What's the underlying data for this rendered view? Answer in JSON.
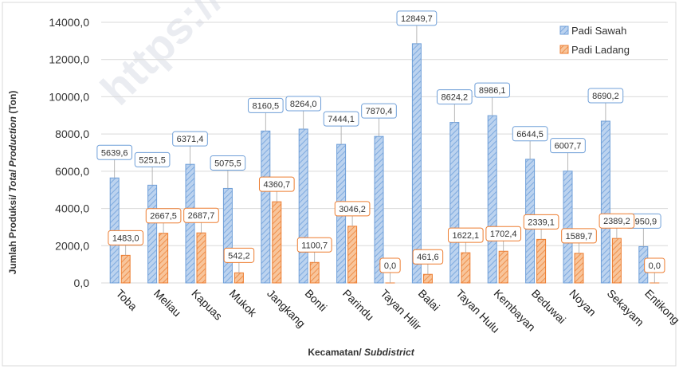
{
  "chart_data": {
    "type": "bar",
    "categories": [
      "Toba",
      "Meliau",
      "Kapuas",
      "Mukok",
      "Jangkang",
      "Bonti",
      "Parindu",
      "Tayan Hilir",
      "Balai",
      "Tayan Hulu",
      "Kembayan",
      "Beduwai",
      "Noyan",
      "Sekayam",
      "Entikong"
    ],
    "series": [
      {
        "name": "Padi Sawah",
        "values": [
          5639.6,
          5251.5,
          6371.4,
          5075.5,
          8160.5,
          8264.0,
          7444.1,
          7870.4,
          12849.7,
          8624.2,
          8986.1,
          6644.5,
          6007.7,
          8690.2,
          1950.9
        ],
        "labels": [
          "5639,6",
          "5251,5",
          "6371,4",
          "5075,5",
          "8160,5",
          "8264,0",
          "7444,1",
          "7870,4",
          "12849,7",
          "8624,2",
          "8986,1",
          "6644,5",
          "6007,7",
          "8690,2",
          "1950,9"
        ]
      },
      {
        "name": "Padi Ladang",
        "values": [
          1483.0,
          2667.5,
          2687.7,
          542.2,
          4360.7,
          1100.7,
          3046.2,
          0.0,
          461.6,
          1622.1,
          1702.4,
          2339.1,
          1589.7,
          2389.2,
          0.0
        ],
        "labels": [
          "1483,0",
          "2667,5",
          "2687,7",
          "542,2",
          "4360,7",
          "1100,7",
          "3046,2",
          "0,0",
          "461,6",
          "1622,1",
          "1702,4",
          "2339,1",
          "1589,7",
          "2389,2",
          "0,0"
        ]
      }
    ],
    "ylabel_normal": "Jumlah Produksi/ ",
    "ylabel_italic": "Total Production",
    "ylabel_suffix": " (Ton)",
    "xlabel_normal": "Kecamatan/ ",
    "xlabel_italic": "Subdistrict",
    "ylim": [
      0,
      14000
    ],
    "yticks": [
      0,
      2000,
      4000,
      6000,
      8000,
      10000,
      12000,
      14000
    ],
    "ytick_labels": [
      "0,0",
      "2000,0",
      "4000,0",
      "6000,0",
      "8000,0",
      "10000,0",
      "12000,0",
      "14000,0"
    ],
    "grid": true,
    "legend_position": "top-right",
    "colors": {
      "sawah_fill": "#bcd3ef",
      "sawah_stroke": "#6f9fd8",
      "ladang_fill": "#f8c59b",
      "ladang_stroke": "#ed7d31"
    }
  },
  "watermark": "https://s"
}
